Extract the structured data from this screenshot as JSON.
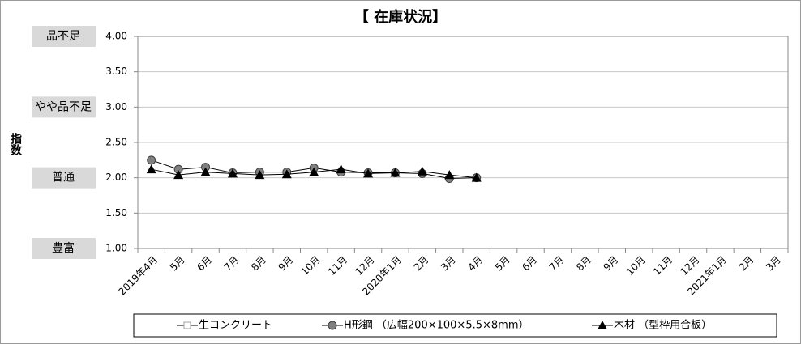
{
  "chart_data": {
    "type": "line",
    "title": "【 在庫状況】",
    "ylabel": "指数",
    "categories": [
      "2019年4月",
      "5月",
      "6月",
      "7月",
      "8月",
      "9月",
      "10月",
      "11月",
      "12月",
      "2020年1月",
      "2月",
      "3月",
      "4月",
      "5月",
      "6月",
      "7月",
      "8月",
      "9月",
      "10月",
      "11月",
      "12月",
      "2021年1月",
      "2月",
      "3月"
    ],
    "series": [
      {
        "name": "生コンクリート",
        "color": "#a0a0a0",
        "marker": "square",
        "values": [
          null,
          null,
          null,
          null,
          null,
          null,
          null,
          null,
          null,
          null,
          null,
          null,
          null,
          null,
          null,
          null,
          null,
          null,
          null,
          null,
          null,
          null,
          null,
          null
        ]
      },
      {
        "name": "H形鋼 （広幅200×100×5.5×8mm）",
        "color": "#808080",
        "marker": "circle",
        "values": [
          2.25,
          2.12,
          2.15,
          2.07,
          2.08,
          2.08,
          2.14,
          2.08,
          2.07,
          2.07,
          2.06,
          1.99,
          2.0,
          null,
          null,
          null,
          null,
          null,
          null,
          null,
          null,
          null,
          null,
          null
        ]
      },
      {
        "name": "木材 （型枠用合板）",
        "color": "#000000",
        "marker": "triangle",
        "values": [
          2.12,
          2.04,
          2.08,
          2.06,
          2.04,
          2.05,
          2.08,
          2.12,
          2.06,
          2.07,
          2.09,
          2.04,
          2.0,
          null,
          null,
          null,
          null,
          null,
          null,
          null,
          null,
          null,
          null,
          null
        ]
      }
    ],
    "ylim": [
      1,
      4
    ],
    "yticks": [
      {
        "value": 1,
        "label": "1.00"
      },
      {
        "value": 1.5,
        "label": "1.50"
      },
      {
        "value": 2,
        "label": "2.00"
      },
      {
        "value": 2.5,
        "label": "2.50"
      },
      {
        "value": 3,
        "label": "3.00"
      },
      {
        "value": 3.5,
        "label": "3.50"
      },
      {
        "value": 4,
        "label": "4.00"
      }
    ],
    "level_labels": [
      {
        "value": 4,
        "label": "品不足"
      },
      {
        "value": 3,
        "label": "やや品不足"
      },
      {
        "value": 2,
        "label": "普通"
      },
      {
        "value": 1,
        "label": "豊富"
      }
    ],
    "grid": true
  }
}
